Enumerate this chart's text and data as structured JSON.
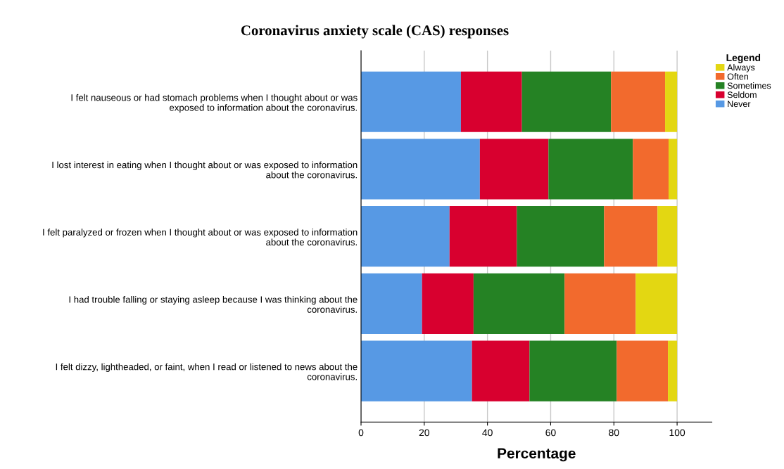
{
  "chart_data": {
    "type": "bar",
    "orientation": "horizontal",
    "stacked": true,
    "title": "Coronavirus anxiety scale (CAS) responses",
    "xlabel": "Percentage",
    "legend_title": "Legend",
    "legend": "top right",
    "grid": "x",
    "categories": [
      "I felt nauseous or had stomach problems when I thought about or was\nexposed to information about the coronavirus.",
      "I lost interest in eating when I thought about or was exposed to information\nabout the coronavirus.",
      "I felt paralyzed or frozen when I thought about or was exposed to information\nabout the coronavirus.",
      "I had trouble falling or staying asleep because I was thinking about the\ncoronavirus.",
      "I felt dizzy, lightheaded, or faint, when I read or listened to news about the\ncoronavirus."
    ],
    "series": [
      {
        "name": "Never",
        "color": "#5799e4",
        "values": [
          31.6,
          37.6,
          28.0,
          19.3,
          35.1
        ]
      },
      {
        "name": "Seldom",
        "color": "#d8002f",
        "values": [
          19.3,
          21.7,
          21.3,
          16.3,
          18.2
        ]
      },
      {
        "name": "Sometimes",
        "color": "#258224",
        "values": [
          28.2,
          26.7,
          27.6,
          28.8,
          27.6
        ]
      },
      {
        "name": "Often",
        "color": "#f26a2d",
        "values": [
          17.1,
          11.3,
          16.9,
          22.5,
          16.2
        ]
      },
      {
        "name": "Always",
        "color": "#e3d712",
        "values": [
          3.8,
          2.7,
          6.2,
          13.1,
          2.9
        ]
      }
    ],
    "xlim": [
      0,
      111
    ],
    "xticks": [
      0,
      20,
      40,
      60,
      80,
      100
    ]
  }
}
